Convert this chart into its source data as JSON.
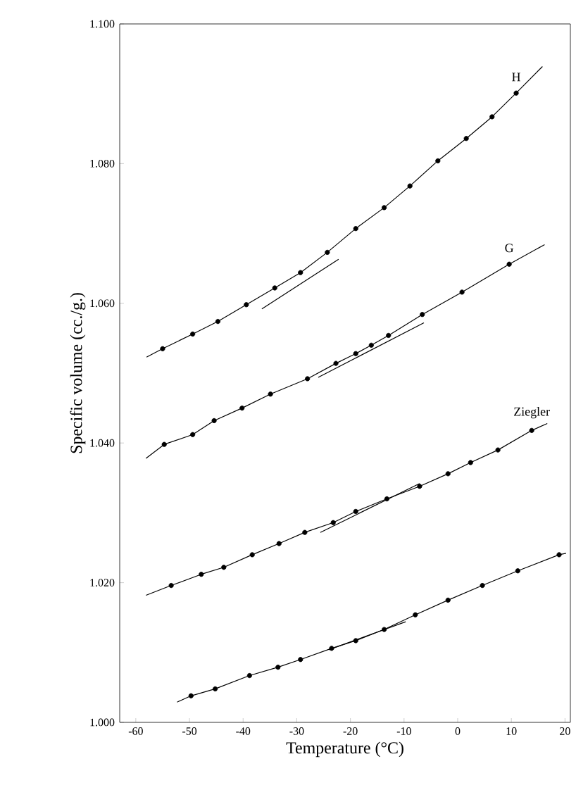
{
  "chart_data": {
    "type": "scatter",
    "xlabel": "Temperature (°C)",
    "ylabel": "Specific volume (cc./g.)",
    "xlim": [
      -63,
      21
    ],
    "ylim": [
      1.0,
      1.1
    ],
    "xticks": [
      -60,
      -50,
      -40,
      -30,
      -20,
      -10,
      0,
      10,
      20
    ],
    "yticks": [
      {
        "value": 1.0,
        "label": "1.000"
      },
      {
        "value": 1.02,
        "label": "1.020"
      },
      {
        "value": 1.04,
        "label": "1.040"
      },
      {
        "value": 1.06,
        "label": "1.060"
      },
      {
        "value": 1.08,
        "label": "1.080"
      },
      {
        "value": 1.1,
        "label": "1.100"
      }
    ],
    "series": [
      {
        "name": "H",
        "marker": "circle",
        "color": "#000000",
        "x": [
          -55.0,
          -49.4,
          -44.7,
          -39.4,
          -34.1,
          -29.3,
          -24.3,
          -19.0,
          -13.7,
          -8.9,
          -3.7,
          1.6,
          6.4,
          10.9
        ],
        "values": [
          1.0535,
          1.0556,
          1.0574,
          1.0598,
          1.0622,
          1.0644,
          1.0673,
          1.0707,
          1.0737,
          1.0768,
          1.0804,
          1.0836,
          1.0867,
          1.0901
        ]
      },
      {
        "type": "line",
        "marker": "none",
        "color": "#000000",
        "x": [
          -58.0,
          -55.0,
          -49.4,
          -44.7,
          -39.4,
          -34.1,
          -29.3,
          -24.3,
          -19.0,
          -13.7,
          -8.9,
          -3.7,
          1.6,
          6.4,
          10.9,
          15.8
        ],
        "values": [
          1.0523,
          1.0535,
          1.0556,
          1.0574,
          1.0598,
          1.0622,
          1.0644,
          1.0673,
          1.0707,
          1.0737,
          1.0768,
          1.0804,
          1.0836,
          1.0867,
          1.0901,
          1.0939
        ]
      },
      {
        "type": "line",
        "marker": "none",
        "color": "#000000",
        "x": [
          -36.5,
          -22.2
        ],
        "values": [
          1.0592,
          1.0663
        ]
      },
      {
        "name": "G",
        "marker": "circle",
        "color": "#000000",
        "x": [
          -54.7,
          -49.4,
          -45.4,
          -40.2,
          -34.9,
          -28.0,
          -22.7,
          -19.0,
          -16.1,
          -12.9,
          -6.6,
          0.8,
          9.6
        ],
        "values": [
          1.0398,
          1.0412,
          1.0432,
          1.045,
          1.047,
          1.0492,
          1.0514,
          1.0528,
          1.054,
          1.0554,
          1.0584,
          1.0616,
          1.0656
        ]
      },
      {
        "type": "line",
        "marker": "none",
        "color": "#000000",
        "x": [
          -58.1,
          -54.7,
          -49.4,
          -45.4,
          -40.2,
          -34.9,
          -28.0,
          -22.7,
          -19.0,
          -16.1,
          -12.9,
          -6.6,
          0.8,
          9.6,
          16.2
        ],
        "values": [
          1.0378,
          1.0398,
          1.0412,
          1.0432,
          1.045,
          1.047,
          1.0492,
          1.0514,
          1.0528,
          1.054,
          1.0554,
          1.0584,
          1.0616,
          1.0656,
          1.0684
        ]
      },
      {
        "type": "line",
        "marker": "none",
        "color": "#000000",
        "x": [
          -26.0,
          -6.3
        ],
        "values": [
          1.0494,
          1.0572
        ]
      },
      {
        "name": "Ziegler",
        "marker": "circle",
        "color": "#000000",
        "x": [
          -53.4,
          -47.8,
          -43.6,
          -38.3,
          -33.3,
          -28.5,
          -23.2,
          -19.0,
          -13.2,
          -7.1,
          -1.8,
          2.4,
          7.5,
          13.8
        ],
        "values": [
          1.0196,
          1.0212,
          1.0222,
          1.024,
          1.0256,
          1.0272,
          1.0286,
          1.0302,
          1.032,
          1.0338,
          1.0356,
          1.0372,
          1.039,
          1.0418
        ]
      },
      {
        "type": "line",
        "marker": "none",
        "color": "#000000",
        "x": [
          -58.1,
          -53.4,
          -47.8,
          -43.6,
          -38.3,
          -33.3,
          -28.5,
          -23.2,
          -19.0,
          -13.2,
          -7.1,
          -1.8,
          2.4,
          7.5,
          13.8,
          16.7
        ],
        "values": [
          1.0182,
          1.0196,
          1.0212,
          1.0222,
          1.024,
          1.0256,
          1.0272,
          1.0286,
          1.0302,
          1.032,
          1.0338,
          1.0356,
          1.0372,
          1.039,
          1.0418,
          1.0428
        ]
      },
      {
        "type": "line",
        "marker": "none",
        "color": "#000000",
        "x": [
          -25.6,
          -7.1
        ],
        "values": [
          1.0272,
          1.0342
        ]
      },
      {
        "marker": "circle",
        "color": "#000000",
        "x": [
          -49.7,
          -45.2,
          -38.8,
          -33.5,
          -29.3,
          -23.5,
          -19.0,
          -13.7,
          -7.9,
          -1.8,
          4.6,
          11.2,
          18.9
        ],
        "values": [
          1.0038,
          1.0048,
          1.0067,
          1.0079,
          1.009,
          1.0106,
          1.0117,
          1.0133,
          1.0154,
          1.0175,
          1.0196,
          1.0217,
          1.024
        ]
      },
      {
        "type": "line",
        "marker": "none",
        "color": "#000000",
        "x": [
          -52.3,
          -49.7,
          -45.2,
          -38.8,
          -33.5,
          -29.3,
          -23.5,
          -19.0,
          -13.7,
          -7.9,
          -1.8,
          4.6,
          11.2,
          18.9,
          20.2
        ],
        "values": [
          1.0029,
          1.0038,
          1.0048,
          1.0067,
          1.0079,
          1.009,
          1.0106,
          1.0117,
          1.0133,
          1.0154,
          1.0175,
          1.0196,
          1.0217,
          1.024,
          1.0242
        ]
      },
      {
        "type": "line",
        "marker": "none",
        "color": "#000000",
        "x": [
          -24.0,
          -9.7
        ],
        "values": [
          1.0104,
          1.0144
        ]
      }
    ]
  }
}
